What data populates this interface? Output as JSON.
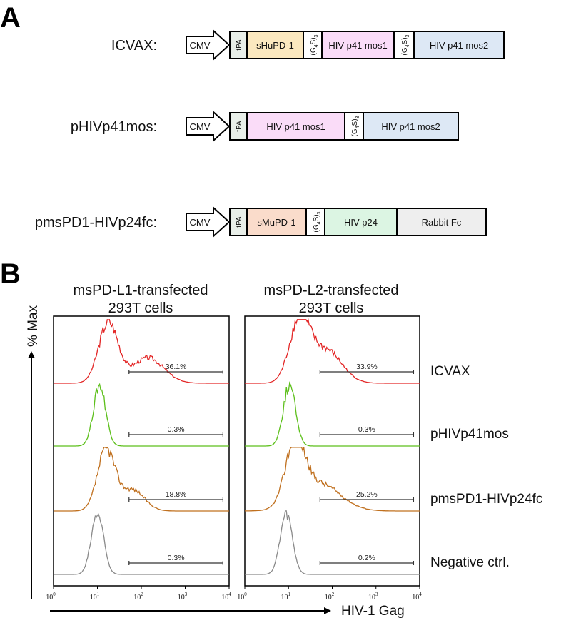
{
  "panel_a": {
    "letter": "A",
    "constructs": [
      {
        "name": "ICVAX:",
        "promoter": "CMV",
        "segments": [
          {
            "kind": "tpa",
            "label": "tPA",
            "color": "#e9efe9"
          },
          {
            "kind": "seg",
            "label": "sHuPD-1",
            "color": "#fbe8bf"
          },
          {
            "kind": "linker",
            "label": "(G",
            "sub": "4",
            "mid": "S)",
            "sub2": "3",
            "color": "#ffffff"
          },
          {
            "kind": "seg",
            "label": "HIV p41 mos1",
            "color": "#fadcf8"
          },
          {
            "kind": "linker",
            "label": "(G",
            "sub": "4",
            "mid": "S)",
            "sub2": "3",
            "color": "#ffffff"
          },
          {
            "kind": "seg",
            "label": "HIV p41 mos2",
            "color": "#dde8f5"
          }
        ]
      },
      {
        "name": "pHIVp41mos:",
        "promoter": "CMV",
        "segments": [
          {
            "kind": "tpa",
            "label": "tPA",
            "color": "#e9efe9"
          },
          {
            "kind": "seg",
            "label": "HIV p41 mos1",
            "color": "#fadcf8"
          },
          {
            "kind": "linker",
            "label": "(G",
            "sub": "4",
            "mid": "S)",
            "sub2": "3",
            "color": "#ffffff"
          },
          {
            "kind": "seg",
            "label": "HIV p41 mos2",
            "color": "#dde8f5"
          }
        ]
      },
      {
        "name": "pmsPD1-HIVp24fc:",
        "promoter": "CMV",
        "segments": [
          {
            "kind": "tpa",
            "label": "tPA",
            "color": "#e9efe9"
          },
          {
            "kind": "seg",
            "label": "sMuPD-1",
            "color": "#fadccb"
          },
          {
            "kind": "linker",
            "label": "(G",
            "sub": "4",
            "mid": "S)",
            "sub2": "3",
            "color": "#ffffff"
          },
          {
            "kind": "seg",
            "label": "HIV p24",
            "color": "#dcf5e3"
          },
          {
            "kind": "seg",
            "label": "Rabbit Fc",
            "color": "#eeeeee"
          }
        ]
      }
    ]
  },
  "panel_b": {
    "letter": "B",
    "y_axis_label": "% Max",
    "x_axis_label": "HIV-1 Gag",
    "x_ticks": [
      {
        "base": "10",
        "exp": "0"
      },
      {
        "base": "10",
        "exp": "1"
      },
      {
        "base": "10",
        "exp": "2"
      },
      {
        "base": "10",
        "exp": "3"
      },
      {
        "base": "10",
        "exp": "4"
      }
    ],
    "columns": [
      {
        "title_line1": "msPD-L1-transfected",
        "title_line2": "293T cells"
      },
      {
        "title_line1": "msPD-L2-transfected",
        "title_line2": "293T cells"
      }
    ],
    "rows": [
      {
        "label": "ICVAX",
        "color": "#e32626",
        "values": [
          "36.1%",
          "33.9%"
        ]
      },
      {
        "label": "pHIVp41mos",
        "color": "#5cbf1a",
        "values": [
          "0.3%",
          "0.3%"
        ]
      },
      {
        "label": "pmsPD1-HIVp24fc",
        "color": "#c0701f",
        "values": [
          "18.8%",
          "25.2%"
        ]
      },
      {
        "label": "Negative ctrl.",
        "color": "#8a8a8a",
        "values": [
          "0.3%",
          "0.2%"
        ]
      }
    ]
  }
}
